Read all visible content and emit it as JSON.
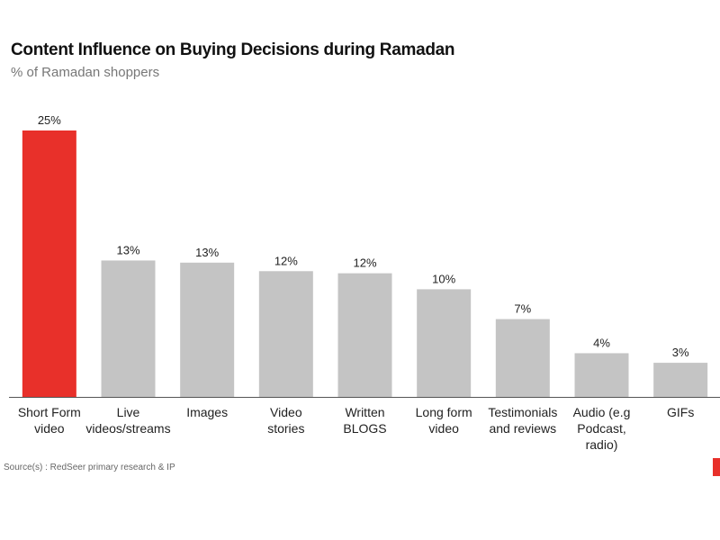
{
  "chart_data": {
    "type": "bar",
    "title": "Content Influence on Buying Decisions during Ramadan",
    "subtitle": "% of Ramadan shoppers",
    "source": "Source(s) : RedSeer primary research & IP",
    "categories": [
      "Short Form\nvideo",
      "Live\nvideos/streams",
      "Images",
      "Video\nstories",
      "Written\nBLOGS",
      "Long form\nvideo",
      "Testimonials\nand reviews",
      "Audio (e.g\nPodcast,\nradio)",
      "GIFs"
    ],
    "values": [
      25,
      12.8,
      12.6,
      11.8,
      11.6,
      10.1,
      7.3,
      4.1,
      3.2
    ],
    "value_labels": [
      "25%",
      "13%",
      "13%",
      "12%",
      "12%",
      "10%",
      "7%",
      "4%",
      "3%"
    ],
    "colors": [
      "#e8302a",
      "#c4c4c4",
      "#c4c4c4",
      "#c4c4c4",
      "#c4c4c4",
      "#c4c4c4",
      "#c4c4c4",
      "#c4c4c4",
      "#c4c4c4"
    ]
  }
}
